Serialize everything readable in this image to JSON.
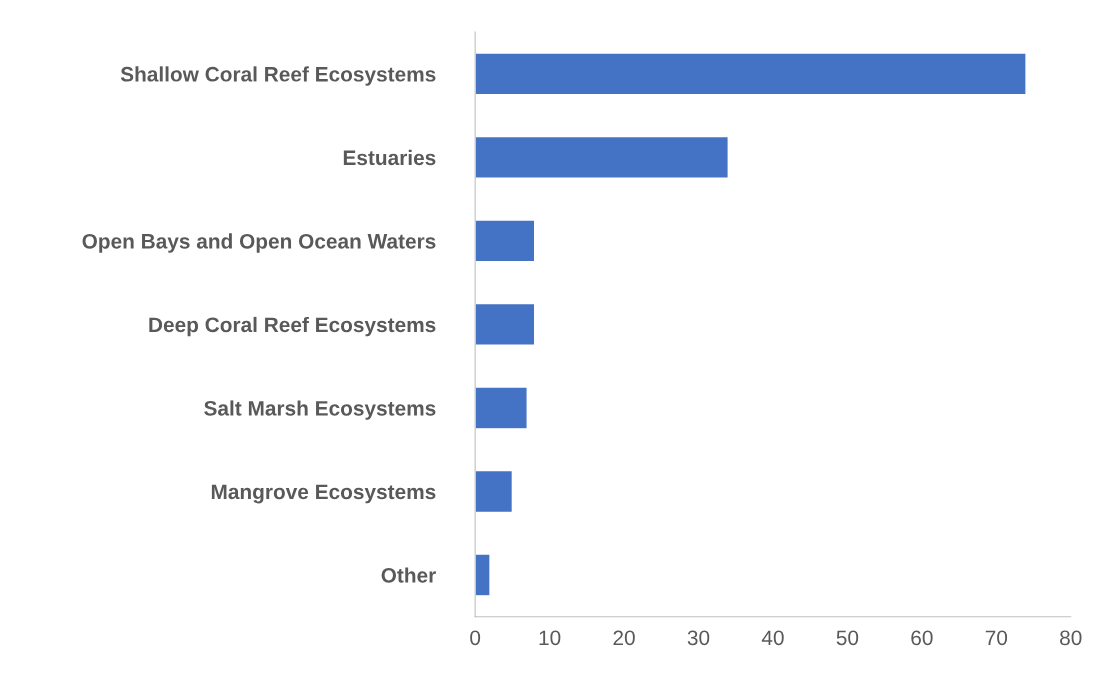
{
  "chart_data": {
    "type": "bar",
    "orientation": "horizontal",
    "categories": [
      "Shallow Coral Reef Ecosystems",
      "Estuaries",
      "Open Bays and Open Ocean Waters",
      "Deep Coral Reef Ecosystems",
      "Salt Marsh Ecosystems",
      "Mangrove Ecosystems",
      "Other"
    ],
    "values": [
      74,
      34,
      8,
      8,
      7,
      5,
      2
    ],
    "color": "#4472c4",
    "xlim": [
      0,
      80
    ],
    "xticks": [
      0,
      10,
      20,
      30,
      40,
      50,
      60,
      70,
      80
    ],
    "grid": false
  }
}
